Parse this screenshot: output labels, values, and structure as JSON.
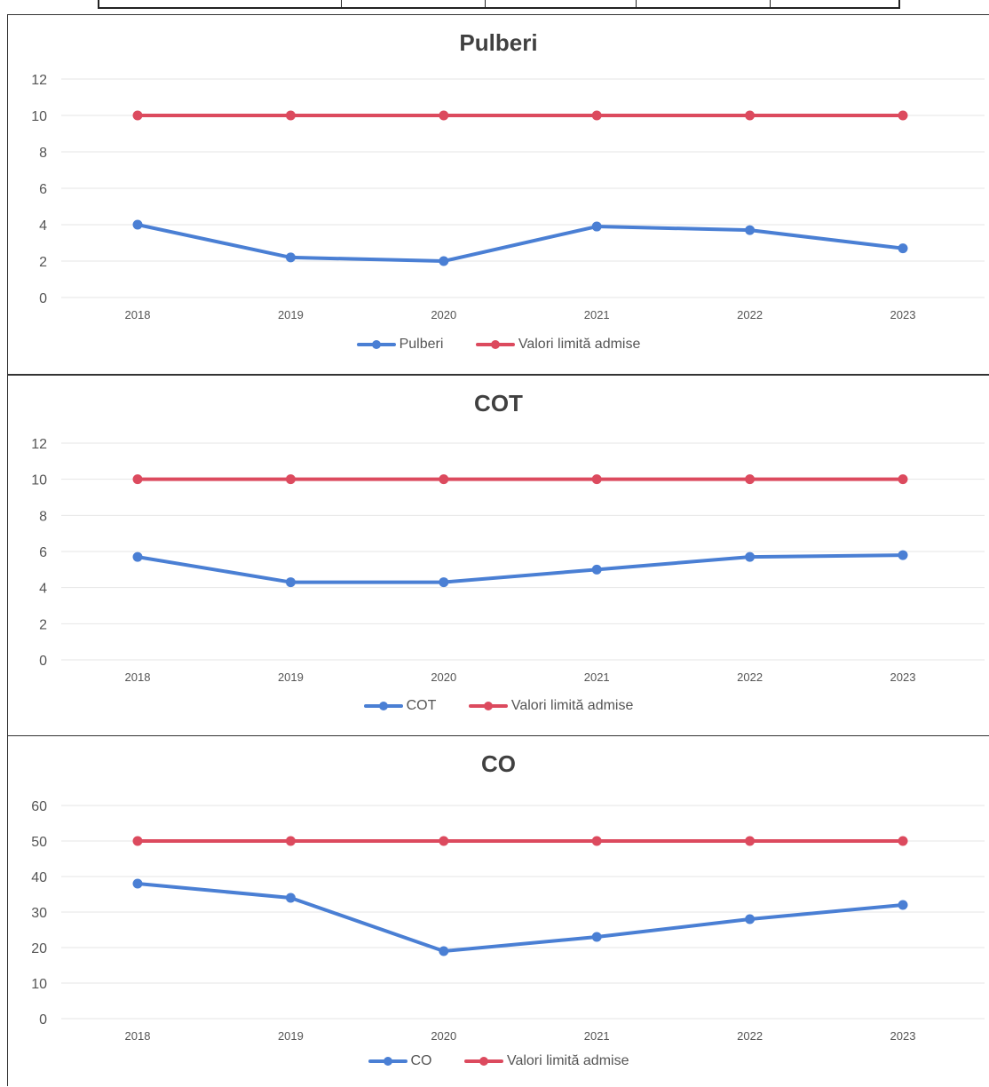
{
  "colors": {
    "measured": "#4a7fd4",
    "limit": "#dc4a5e",
    "grid": "#e6e6e6"
  },
  "chart_data": [
    {
      "type": "line",
      "title": "Pulberi",
      "x": [
        "2018",
        "2019",
        "2020",
        "2021",
        "2022",
        "2023"
      ],
      "ylim": [
        0,
        12
      ],
      "yticks": [
        0,
        2,
        4,
        6,
        8,
        10,
        12
      ],
      "series": [
        {
          "name": "Pulberi",
          "color": "#4a7fd4",
          "values": [
            4.0,
            2.2,
            2.0,
            3.9,
            3.7,
            2.7
          ]
        },
        {
          "name": "Valori limită admise",
          "color": "#dc4a5e",
          "values": [
            10,
            10,
            10,
            10,
            10,
            10
          ]
        }
      ],
      "legend": "bottom",
      "grid": true
    },
    {
      "type": "line",
      "title": "COT",
      "x": [
        "2018",
        "2019",
        "2020",
        "2021",
        "2022",
        "2023"
      ],
      "ylim": [
        0,
        12
      ],
      "yticks": [
        0,
        2,
        4,
        6,
        8,
        10,
        12
      ],
      "series": [
        {
          "name": "COT",
          "color": "#4a7fd4",
          "values": [
            5.7,
            4.3,
            4.3,
            5.0,
            5.7,
            5.8
          ]
        },
        {
          "name": "Valori limită admise",
          "color": "#dc4a5e",
          "values": [
            10,
            10,
            10,
            10,
            10,
            10
          ]
        }
      ],
      "legend": "bottom",
      "grid": true
    },
    {
      "type": "line",
      "title": "CO",
      "x": [
        "2018",
        "2019",
        "2020",
        "2021",
        "2022",
        "2023"
      ],
      "ylim": [
        0,
        60
      ],
      "yticks": [
        0,
        10,
        20,
        30,
        40,
        50,
        60
      ],
      "series": [
        {
          "name": "CO",
          "color": "#4a7fd4",
          "values": [
            38,
            34,
            19,
            23,
            28,
            32
          ]
        },
        {
          "name": "Valori limită admise",
          "color": "#dc4a5e",
          "values": [
            50,
            50,
            50,
            50,
            50,
            50
          ]
        }
      ],
      "legend": "bottom",
      "grid": true
    }
  ]
}
